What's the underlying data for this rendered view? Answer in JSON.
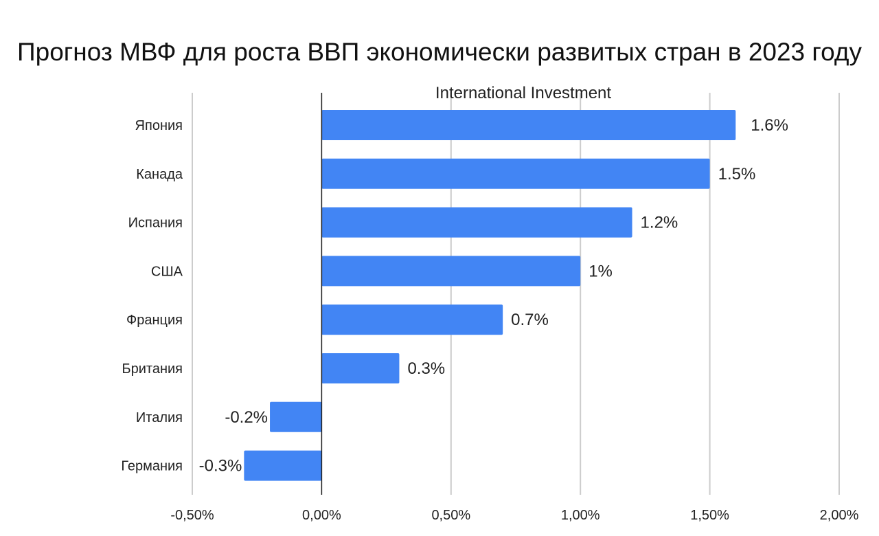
{
  "chart_data": {
    "type": "bar",
    "orientation": "horizontal",
    "title": "Прогноз МВФ для роста ВВП экономически развитых стран в 2023 году",
    "subtitle": "International Investment",
    "categories": [
      "Япония",
      "Канада",
      "Испания",
      "США",
      "Франция",
      "Британия",
      "Италия",
      "Германия"
    ],
    "values": [
      1.6,
      1.5,
      1.2,
      1.0,
      0.7,
      0.3,
      -0.2,
      -0.3
    ],
    "value_labels": [
      "1.6%",
      "1.5%",
      "1.2%",
      "1%",
      "0.7%",
      "0.3%",
      "-0.2%",
      "-0.3%"
    ],
    "xlim": [
      -0.5,
      2.0
    ],
    "x_ticks": [
      -0.5,
      0.0,
      0.5,
      1.0,
      1.5,
      2.0
    ],
    "x_tick_labels": [
      "-0,50%",
      "0,00%",
      "0,50%",
      "1,00%",
      "1,50%",
      "2,00%"
    ],
    "xlabel": "",
    "ylabel": "",
    "grid": true,
    "legend": "none",
    "bar_color": "#4285f4"
  }
}
